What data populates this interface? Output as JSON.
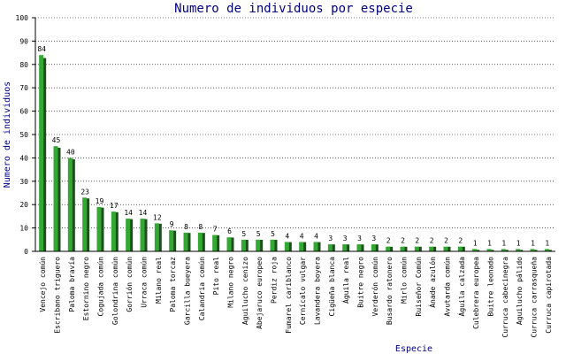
{
  "colors": {
    "bar_front": "#33a833",
    "bar_shadow": "#1f4f1f",
    "grid": "#000000",
    "axis": "#000000",
    "title": "#000080"
  },
  "chart_data": {
    "type": "bar",
    "title": "Numero de individuos por especie",
    "xlabel": "Especie",
    "ylabel": "Numero de individuos",
    "ylim": [
      0,
      100
    ],
    "yticks": [
      0,
      10,
      20,
      30,
      40,
      50,
      60,
      70,
      80,
      90,
      100
    ],
    "grid": true,
    "categories": [
      "Vencejo común",
      "Escribano triguero",
      "Paloma bravía",
      "Estornino negro",
      "Cogujada común",
      "Golondrina común",
      "Gorrión común",
      "Urraca común",
      "Milano real",
      "Paloma torcaz",
      "Garcilla bueyera",
      "Calandria común",
      "Pito real",
      "Milano negro",
      "Aguilucho cenizo",
      "Abejaruco europeo",
      "Perdiz roja",
      "Fumarel cariblanco",
      "Cernícalo vulgar",
      "Lavandera boyera",
      "Cigüeña blanca",
      "Águila real",
      "Buitre negro",
      "Verderón común",
      "Busardo ratonero",
      "Mirlo común",
      "Ruiseñor Común",
      "Ánade azulón",
      "Avutarda común",
      "Águila calzada",
      "Culebrera europea",
      "Buitre leonado",
      "Curruca cabecinegra",
      "Aguilucho pálido",
      "Curruca carrasqueña",
      "Curruca capirotada"
    ],
    "values": [
      84,
      45,
      40,
      23,
      19,
      17,
      14,
      14,
      12,
      9,
      8,
      8,
      7,
      6,
      5,
      5,
      5,
      4,
      4,
      4,
      3,
      3,
      3,
      3,
      2,
      2,
      2,
      2,
      2,
      2,
      1,
      1,
      1,
      1,
      1,
      1
    ]
  }
}
